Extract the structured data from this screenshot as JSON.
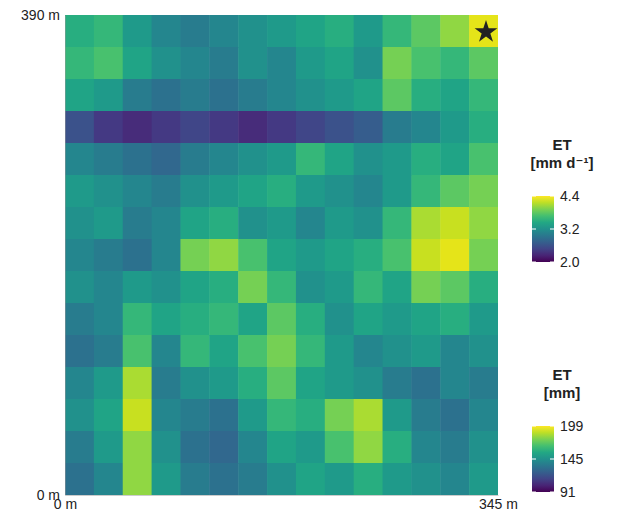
{
  "chart_data": {
    "type": "heatmap",
    "x": [
      11.5,
      34.5,
      57.5,
      80.5,
      103.5,
      126.5,
      149.5,
      172.5,
      195.5,
      218.5,
      241.5,
      264.5,
      287.5,
      310.5,
      333.5
    ],
    "y": [
      377,
      351,
      325,
      299,
      273,
      247,
      221,
      195,
      169,
      143,
      117,
      91,
      65,
      39,
      13
    ],
    "values": [
      [
        3.5,
        3.6,
        3.3,
        3.1,
        3.0,
        3.1,
        3.2,
        3.3,
        3.4,
        3.5,
        3.3,
        3.6,
        3.8,
        4.0,
        4.3
      ],
      [
        3.6,
        3.7,
        3.4,
        3.2,
        3.1,
        3.0,
        3.2,
        3.1,
        3.3,
        3.4,
        3.2,
        3.9,
        3.7,
        3.6,
        3.8
      ],
      [
        3.4,
        3.3,
        3.0,
        2.9,
        3.0,
        2.9,
        3.0,
        3.1,
        3.2,
        3.3,
        3.4,
        3.8,
        3.5,
        3.4,
        3.6
      ],
      [
        2.6,
        2.4,
        2.3,
        2.4,
        2.5,
        2.4,
        2.3,
        2.4,
        2.5,
        2.6,
        2.7,
        3.0,
        3.1,
        3.3,
        3.5
      ],
      [
        3.1,
        3.0,
        2.9,
        2.8,
        3.0,
        3.1,
        3.2,
        3.3,
        3.6,
        3.4,
        3.2,
        3.3,
        3.5,
        3.4,
        3.7
      ],
      [
        3.3,
        3.2,
        3.1,
        3.0,
        3.2,
        3.3,
        3.4,
        3.5,
        3.3,
        3.2,
        3.1,
        3.3,
        3.6,
        3.8,
        3.9
      ],
      [
        3.2,
        3.3,
        3.0,
        3.1,
        3.4,
        3.5,
        3.2,
        3.3,
        3.1,
        3.3,
        3.2,
        3.6,
        4.1,
        4.2,
        4.0
      ],
      [
        3.1,
        3.0,
        2.9,
        3.1,
        3.9,
        4.0,
        3.7,
        3.4,
        3.3,
        3.4,
        3.5,
        3.7,
        4.2,
        4.3,
        3.9
      ],
      [
        3.2,
        3.1,
        3.3,
        3.2,
        3.4,
        3.5,
        3.9,
        3.6,
        3.2,
        3.3,
        3.6,
        3.4,
        3.9,
        3.8,
        3.5
      ],
      [
        3.0,
        3.1,
        3.6,
        3.4,
        3.5,
        3.6,
        3.4,
        3.8,
        3.5,
        3.2,
        3.4,
        3.3,
        3.4,
        3.5,
        3.3
      ],
      [
        2.9,
        3.0,
        3.7,
        3.1,
        3.6,
        3.4,
        3.7,
        3.9,
        3.6,
        3.3,
        3.1,
        3.2,
        3.3,
        3.1,
        3.2
      ],
      [
        3.1,
        3.3,
        4.1,
        3.0,
        3.2,
        3.3,
        3.5,
        3.8,
        3.4,
        3.3,
        3.2,
        3.0,
        2.9,
        3.1,
        3.0
      ],
      [
        3.2,
        3.4,
        4.2,
        3.1,
        3.0,
        2.9,
        3.3,
        3.6,
        3.5,
        3.9,
        4.1,
        3.3,
        3.0,
        2.9,
        3.1
      ],
      [
        3.0,
        3.3,
        4.0,
        3.2,
        2.9,
        2.8,
        3.1,
        3.4,
        3.3,
        3.7,
        4.0,
        3.5,
        3.1,
        3.0,
        3.2
      ],
      [
        2.9,
        3.1,
        4.0,
        3.3,
        3.0,
        2.9,
        3.0,
        3.2,
        3.4,
        3.3,
        3.5,
        3.3,
        3.2,
        3.1,
        3.3
      ]
    ],
    "xlim": [
      0,
      345
    ],
    "ylim": [
      0,
      390
    ],
    "xticks": [
      {
        "value": 0,
        "label": "0 m"
      },
      {
        "value": 345,
        "label": "345 m"
      }
    ],
    "yticks": [
      {
        "value": 0,
        "label": "0 m"
      },
      {
        "value": 390,
        "label": "390 m"
      }
    ],
    "colorbars": [
      {
        "title": "ET [mm d⁻¹]",
        "range": [
          2.0,
          4.4
        ],
        "ticks": [
          {
            "value": 2.0,
            "label": "2.0"
          },
          3.2,
          4.4
        ]
      },
      {
        "title": "ET [mm]",
        "range": [
          91,
          199
        ],
        "ticks": [
          91,
          145,
          199
        ]
      }
    ]
  }
}
